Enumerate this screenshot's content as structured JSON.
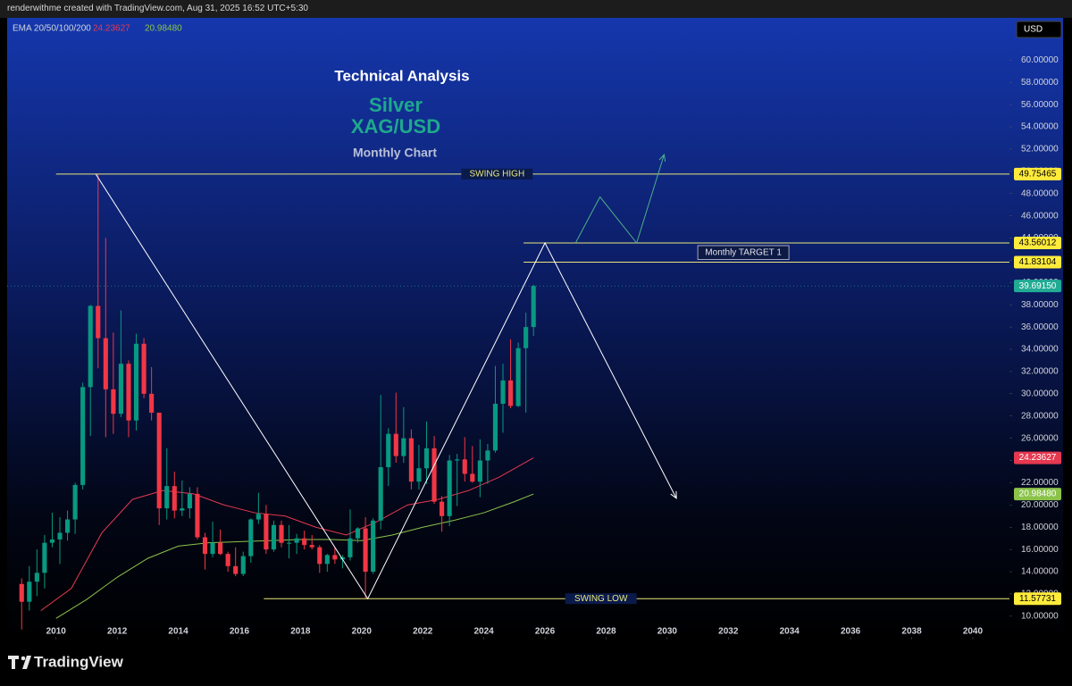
{
  "header": {
    "text": "renderwithme created with TradingView.com, Aug 31, 2025 16:52 UTC+5:30"
  },
  "footer": {
    "brand": "TradingView"
  },
  "chart_data": {
    "type": "candlestick",
    "title": "Technical Analysis",
    "symbol_name": "Silver",
    "symbol": "XAG/USD",
    "subtitle": "Monthly Chart",
    "indicator": "EMA 20/50/100/200",
    "currency": "USD",
    "up_color": "#089981",
    "down_color": "#f23645",
    "xlim": [
      2008.4,
      2041.2
    ],
    "xticks": [
      2010,
      2012,
      2014,
      2016,
      2018,
      2020,
      2022,
      2024,
      2026,
      2028,
      2030,
      2032,
      2034,
      2036,
      2038,
      2040
    ],
    "ylim": [
      7.9,
      63.8
    ],
    "yticks": [
      {
        "value": 10,
        "label": "10.00000"
      },
      {
        "value": 12,
        "label": "12.00000"
      },
      {
        "value": 14,
        "label": "14.00000"
      },
      {
        "value": 16,
        "label": "16.00000"
      },
      {
        "value": 18,
        "label": "18.00000"
      },
      {
        "value": 20,
        "label": "20.00000"
      },
      {
        "value": 22,
        "label": "22.00000"
      },
      {
        "value": 24,
        "label": "24.00000"
      },
      {
        "value": 26,
        "label": "26.00000"
      },
      {
        "value": 28,
        "label": "28.00000"
      },
      {
        "value": 30,
        "label": "30.00000"
      },
      {
        "value": 32,
        "label": "32.00000"
      },
      {
        "value": 34,
        "label": "34.00000"
      },
      {
        "value": 36,
        "label": "36.00000"
      },
      {
        "value": 38,
        "label": "38.00000"
      },
      {
        "value": 40,
        "label": "40.00000"
      },
      {
        "value": 42,
        "label": "42.00000"
      },
      {
        "value": 44,
        "label": "44.00000"
      },
      {
        "value": 46,
        "label": "46.00000"
      },
      {
        "value": 48,
        "label": "48.00000"
      },
      {
        "value": 50,
        "label": "50.00000"
      },
      {
        "value": 52,
        "label": "52.00000"
      },
      {
        "value": 54,
        "label": "54.00000"
      },
      {
        "value": 56,
        "label": "56.00000"
      },
      {
        "value": 58,
        "label": "58.00000"
      },
      {
        "value": 60,
        "label": "60.00000"
      }
    ],
    "x": [
      2008.875,
      2009.125,
      2009.375,
      2009.625,
      2009.875,
      2010.125,
      2010.375,
      2010.625,
      2010.875,
      2011.125,
      2011.375,
      2011.625,
      2011.875,
      2012.125,
      2012.375,
      2012.625,
      2012.875,
      2013.125,
      2013.375,
      2013.625,
      2013.875,
      2014.125,
      2014.375,
      2014.625,
      2014.875,
      2015.125,
      2015.375,
      2015.625,
      2015.875,
      2016.125,
      2016.375,
      2016.625,
      2016.875,
      2017.125,
      2017.375,
      2017.625,
      2017.875,
      2018.125,
      2018.375,
      2018.625,
      2018.875,
      2019.125,
      2019.375,
      2019.625,
      2019.875,
      2020.125,
      2020.375,
      2020.625,
      2020.875,
      2021.125,
      2021.375,
      2021.625,
      2021.875,
      2022.125,
      2022.375,
      2022.625,
      2022.875,
      2023.125,
      2023.375,
      2023.625,
      2023.875,
      2024.125,
      2024.375,
      2024.625,
      2024.875,
      2025.125,
      2025.375,
      2025.625
    ],
    "open": [
      12.9,
      11.3,
      13.1,
      13.9,
      16.6,
      16.9,
      17.5,
      18.7,
      21.8,
      30.6,
      37.9,
      35.0,
      30.4,
      28.2,
      32.7,
      27.6,
      34.5,
      30.0,
      28.3,
      19.7,
      21.7,
      19.5,
      19.7,
      21.0,
      17.1,
      15.6,
      16.6,
      15.6,
      14.5,
      13.8,
      15.4,
      18.7,
      19.2,
      16.0,
      18.2,
      16.6,
      16.6,
      17.0,
      16.4,
      16.2,
      14.7,
      15.5,
      15.1,
      15.3,
      17.0,
      17.9,
      14.0,
      18.6,
      23.4,
      26.4,
      24.4,
      26.0,
      22.1,
      23.3,
      25.1,
      20.3,
      19.0,
      24.0,
      24.1,
      22.8,
      22.1,
      24.0,
      24.9,
      29.1,
      31.2,
      28.9,
      34.1,
      36.0
    ],
    "high": [
      13.4,
      14.5,
      16.0,
      17.3,
      19.3,
      18.9,
      19.5,
      22.0,
      31.0,
      38.0,
      49.8,
      44.0,
      35.5,
      37.5,
      33.0,
      35.4,
      35.0,
      32.4,
      28.3,
      25.1,
      23.0,
      22.2,
      21.6,
      21.6,
      17.5,
      18.5,
      17.8,
      15.8,
      16.2,
      15.8,
      18.8,
      21.1,
      20.0,
      18.6,
      18.6,
      18.2,
      17.4,
      17.7,
      17.3,
      16.4,
      15.6,
      16.2,
      15.5,
      19.6,
      18.0,
      18.9,
      18.8,
      29.9,
      26.9,
      30.1,
      28.8,
      26.8,
      25.4,
      27.5,
      26.2,
      20.8,
      24.5,
      24.6,
      26.1,
      25.3,
      25.9,
      25.5,
      32.5,
      32.7,
      34.9,
      34.6,
      37.3,
      39.8
    ],
    "low": [
      8.8,
      10.5,
      11.8,
      12.5,
      16.2,
      14.7,
      16.8,
      17.4,
      21.4,
      26.2,
      32.3,
      26.1,
      26.4,
      27.9,
      26.1,
      26.7,
      29.6,
      27.6,
      18.2,
      18.7,
      18.8,
      19.0,
      18.8,
      16.9,
      14.2,
      15.3,
      15.5,
      14.0,
      13.6,
      13.6,
      14.8,
      18.3,
      15.6,
      15.8,
      16.2,
      15.2,
      15.6,
      16.0,
      16.0,
      13.9,
      14.0,
      14.7,
      14.3,
      15.0,
      16.6,
      11.6,
      13.8,
      17.8,
      21.7,
      23.8,
      23.8,
      21.4,
      21.4,
      21.9,
      20.1,
      17.6,
      18.1,
      19.9,
      22.1,
      22.0,
      20.7,
      21.9,
      24.7,
      26.5,
      28.7,
      28.8,
      28.3,
      35.2
    ],
    "close": [
      11.3,
      13.1,
      13.9,
      16.6,
      16.9,
      17.5,
      18.7,
      21.8,
      30.6,
      37.9,
      35.0,
      30.4,
      28.2,
      32.7,
      27.6,
      34.5,
      30.0,
      28.3,
      19.7,
      21.7,
      19.5,
      19.7,
      21.0,
      17.1,
      15.6,
      16.6,
      15.6,
      14.5,
      13.8,
      15.4,
      18.7,
      19.2,
      16.0,
      18.2,
      16.6,
      16.6,
      17.0,
      16.4,
      16.2,
      14.7,
      15.5,
      15.1,
      15.3,
      17.0,
      17.9,
      14.0,
      18.6,
      23.4,
      26.4,
      24.4,
      26.0,
      22.1,
      23.3,
      25.1,
      20.3,
      19.0,
      24.0,
      24.1,
      22.8,
      22.1,
      24.0,
      24.9,
      29.1,
      31.2,
      28.9,
      34.1,
      36.0,
      39.6915
    ],
    "last_close_label": "39.69150",
    "last_close_color": "#22ab94",
    "emas": [
      {
        "color": "#e53950",
        "last_label": "24.23627",
        "x": [
          2009.5,
          2010.5,
          2011.5,
          2012.5,
          2013.5,
          2014.5,
          2015.5,
          2016.5,
          2017.5,
          2018.5,
          2019.5,
          2020.5,
          2021.5,
          2022.5,
          2023.5,
          2024.5,
          2025.625
        ],
        "values": [
          10.5,
          12.5,
          17.5,
          20.5,
          21.3,
          21.0,
          20.0,
          19.3,
          19.0,
          18.0,
          17.3,
          18.5,
          20.0,
          20.5,
          21.3,
          22.5,
          24.23627
        ]
      },
      {
        "color": "#8bc34a",
        "last_label": "20.98480",
        "x": [
          2010.0,
          2011.0,
          2012.0,
          2013.0,
          2014.0,
          2015.0,
          2016.0,
          2017.0,
          2018.0,
          2019.0,
          2020.0,
          2021.0,
          2022.0,
          2023.0,
          2024.0,
          2025.0,
          2025.625
        ],
        "values": [
          9.8,
          11.5,
          13.5,
          15.2,
          16.3,
          16.6,
          16.7,
          16.8,
          16.9,
          16.9,
          16.8,
          17.3,
          18.0,
          18.6,
          19.3,
          20.3,
          20.9848
        ]
      }
    ],
    "level_color": "#e8e87a",
    "levels": [
      {
        "name": "SWING HIGH",
        "value": 49.75465,
        "label": "49.75465",
        "x_start": 2010.0
      },
      {
        "value": 43.56012,
        "label": "43.56012",
        "x_start": 2025.3
      },
      {
        "value": 41.83104,
        "label": "41.83104",
        "x_start": 2025.3
      },
      {
        "name": "SWING LOW",
        "value": 11.57731,
        "label": "11.57731",
        "x_start": 2016.8
      }
    ],
    "target_label": "Monthly TARGET 1",
    "trend_path": {
      "color": "#ffffff",
      "x": [
        2011.3,
        2020.2,
        2026.0,
        2030.3
      ],
      "y": [
        49.75465,
        11.57731,
        43.56012,
        20.6
      ]
    },
    "projection_path": {
      "color": "#4caf8a",
      "x": [
        2027.0,
        2027.8,
        2029.0,
        2029.9
      ],
      "y": [
        43.56012,
        47.7,
        43.56012,
        51.5
      ]
    }
  }
}
